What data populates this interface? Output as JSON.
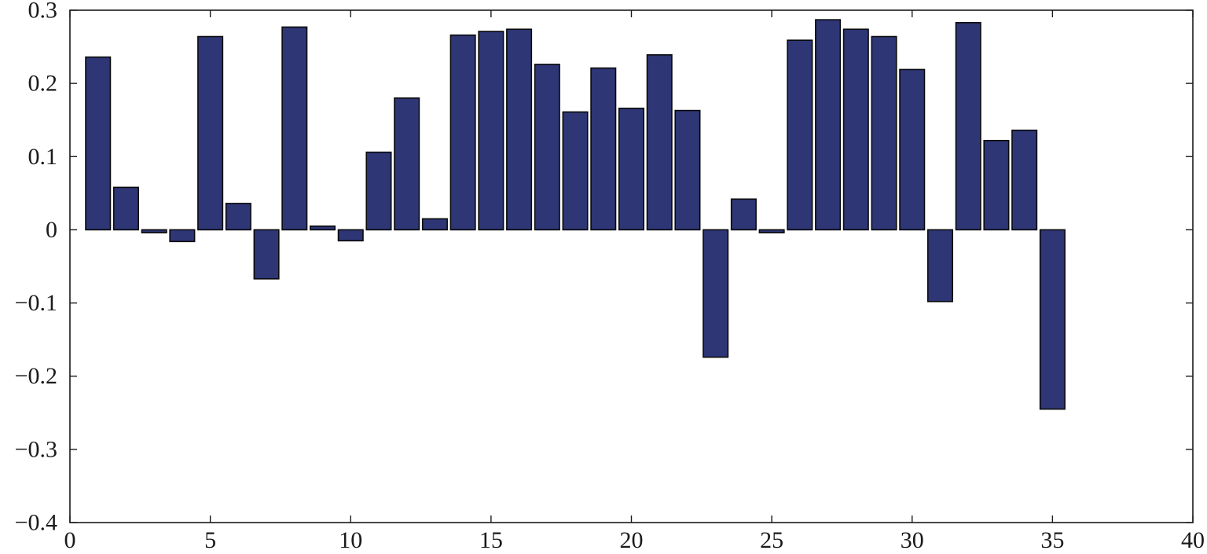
{
  "chart_data": {
    "type": "bar",
    "title": "",
    "xlabel": "",
    "ylabel": "",
    "xlim": [
      0,
      40
    ],
    "ylim": [
      -0.4,
      0.3
    ],
    "x_ticks": [
      0,
      5,
      10,
      15,
      20,
      25,
      30,
      35,
      40
    ],
    "x_tick_labels": [
      "0",
      "5",
      "10",
      "15",
      "20",
      "25",
      "30",
      "35",
      "40"
    ],
    "y_ticks": [
      -0.4,
      -0.3,
      -0.2,
      -0.1,
      0,
      0.1,
      0.2,
      0.3
    ],
    "y_tick_labels": [
      "−0.4",
      "−0.3",
      "−0.2",
      "−0.1",
      "0",
      "0.1",
      "0.2",
      "0.3"
    ],
    "grid": false,
    "bar_color": "#2e3676",
    "categories": [
      1,
      2,
      3,
      4,
      5,
      6,
      7,
      8,
      9,
      10,
      11,
      12,
      13,
      14,
      15,
      16,
      17,
      18,
      19,
      20,
      21,
      22,
      23,
      24,
      25,
      26,
      27,
      28,
      29,
      30,
      31,
      32,
      33,
      34,
      35
    ],
    "values": [
      0.236,
      0.058,
      -0.004,
      -0.016,
      0.264,
      0.036,
      -0.067,
      0.277,
      0.005,
      -0.015,
      0.106,
      0.18,
      0.015,
      0.266,
      0.271,
      0.274,
      0.226,
      0.161,
      0.221,
      0.166,
      0.239,
      0.163,
      -0.174,
      0.042,
      -0.004,
      0.259,
      0.287,
      0.274,
      0.264,
      0.219,
      -0.098,
      0.283,
      0.122,
      0.136,
      -0.245
    ]
  }
}
